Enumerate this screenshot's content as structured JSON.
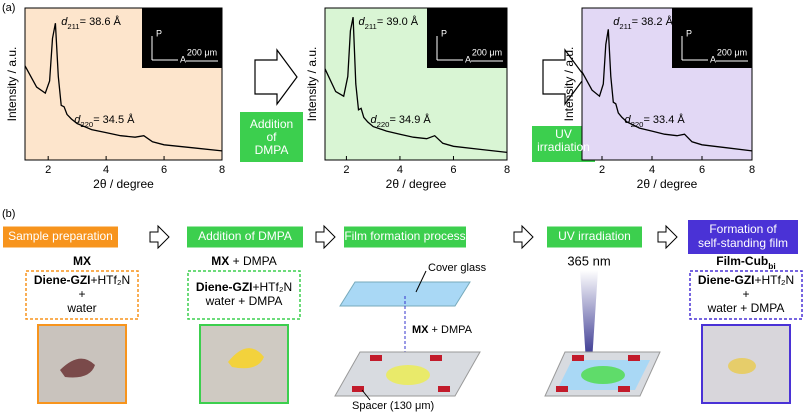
{
  "panel_a_label": "(a)",
  "chart_data": [
    {
      "type": "line",
      "xlabel": "2θ / degree",
      "ylabel": "Intensity / a.u.",
      "xlim": [
        1.2,
        8
      ],
      "xticks": [
        2,
        4,
        6,
        8
      ],
      "ylim": [
        0,
        100
      ],
      "background": "#fde5cc",
      "x": [
        1.2,
        1.6,
        1.9,
        2.05,
        2.15,
        2.25,
        2.35,
        2.45,
        2.55,
        2.65,
        2.8,
        3.0,
        3.5,
        4,
        4.5,
        5,
        5.3,
        5.6,
        6,
        7,
        8
      ],
      "series": [
        {
          "color": "#000000",
          "values": [
            62,
            48,
            44,
            52,
            80,
            90,
            55,
            36,
            35,
            30,
            27,
            24,
            20,
            18,
            16,
            15,
            16,
            12,
            10,
            8,
            6
          ]
        }
      ],
      "annotations": [
        [
          {
            "text": "d",
            "italic": true
          },
          {
            "text": "211",
            "sub": true
          },
          {
            "text": "= 38.6 Å"
          }
        ],
        [
          {
            "text": "d",
            "italic": true
          },
          {
            "text": "220",
            "sub": true
          },
          {
            "text": "= 34.5 Å"
          }
        ]
      ],
      "inset": {
        "vertical": "P",
        "horizontal": "A",
        "scale": "200 μm"
      }
    },
    {
      "type": "line",
      "xlabel": "2θ / degree",
      "ylabel": "Intensity / a.u.",
      "xlim": [
        1.2,
        8
      ],
      "xticks": [
        2,
        4,
        6,
        8
      ],
      "ylim": [
        0,
        100
      ],
      "background": "#d9f5d4",
      "x": [
        1.2,
        1.6,
        1.9,
        2.05,
        2.15,
        2.25,
        2.35,
        2.45,
        2.55,
        2.65,
        2.8,
        3.0,
        3.5,
        4,
        4.5,
        5,
        5.3,
        5.6,
        6,
        7,
        8
      ],
      "series": [
        {
          "color": "#000000",
          "values": [
            60,
            45,
            42,
            55,
            85,
            94,
            50,
            33,
            34,
            28,
            25,
            22,
            19,
            17,
            15,
            14,
            16,
            11,
            9,
            7,
            5
          ]
        }
      ],
      "annotations": [
        [
          {
            "text": "d",
            "italic": true
          },
          {
            "text": "211",
            "sub": true
          },
          {
            "text": "= 39.0 Å"
          }
        ],
        [
          {
            "text": "d",
            "italic": true
          },
          {
            "text": "220",
            "sub": true
          },
          {
            "text": "= 34.9 Å"
          }
        ]
      ],
      "inset": {
        "vertical": "P",
        "horizontal": "A",
        "scale": "200 μm"
      }
    },
    {
      "type": "line",
      "xlabel": "2θ / degree",
      "ylabel": "Intensity / a.u.",
      "xlim": [
        1.2,
        8
      ],
      "xticks": [
        2,
        4,
        6,
        8
      ],
      "ylim": [
        0,
        100
      ],
      "background": "#e2d8f5",
      "x": [
        1.2,
        1.6,
        1.9,
        2.05,
        2.15,
        2.25,
        2.35,
        2.45,
        2.55,
        2.65,
        2.8,
        3.0,
        3.5,
        4,
        4.5,
        5,
        5.3,
        5.6,
        6,
        7,
        8
      ],
      "series": [
        {
          "color": "#000000",
          "values": [
            58,
            46,
            42,
            50,
            76,
            86,
            55,
            38,
            37,
            31,
            28,
            25,
            21,
            19,
            17,
            16,
            17,
            12,
            10,
            8,
            6
          ]
        }
      ],
      "annotations": [
        [
          {
            "text": "d",
            "italic": true
          },
          {
            "text": "211",
            "sub": true
          },
          {
            "text": "= 38.2 Å"
          }
        ],
        [
          {
            "text": "d",
            "italic": true
          },
          {
            "text": "220",
            "sub": true
          },
          {
            "text": "= 33.4 Å"
          }
        ]
      ],
      "inset": {
        "vertical": "P",
        "horizontal": "A",
        "scale": "200 μm"
      }
    }
  ],
  "arrows_a": [
    [
      "Addition",
      "of",
      "DMPA"
    ],
    [
      "UV",
      "irradiation"
    ]
  ],
  "panel_b_label": "(b)",
  "steps": [
    [
      "Sample preparation"
    ],
    [
      "Addition of DMPA"
    ],
    [
      "Film formation process"
    ],
    [
      "UV irradiation"
    ],
    [
      "Formation of",
      "self-standing film"
    ]
  ],
  "compositions": [
    {
      "title": [
        {
          "text": "MX",
          "bold": true
        }
      ],
      "lines": [
        [
          {
            "text": "Diene-GZI",
            "bold": true
          },
          {
            "text": "+HTf₂N"
          }
        ],
        [
          {
            "text": "+"
          }
        ],
        [
          {
            "text": "water"
          }
        ]
      ]
    },
    {
      "title": [
        {
          "text": "MX",
          "bold": true
        },
        {
          "text": " + DMPA"
        }
      ],
      "lines": [
        [
          {
            "text": "Diene-GZI",
            "bold": true
          },
          {
            "text": "+HTf₂N"
          }
        ],
        [
          {
            "text": "water + DMPA"
          }
        ]
      ]
    },
    {
      "title": [
        {
          "text": "Film-Cub",
          "bold": true
        },
        {
          "text": "bi",
          "bold": true,
          "sub": true
        }
      ],
      "lines": [
        [
          {
            "text": "Diene-GZI",
            "bold": true
          },
          {
            "text": "+HTf₂N"
          }
        ],
        [
          {
            "text": "+"
          }
        ],
        [
          {
            "text": "water + DMPA"
          }
        ]
      ]
    }
  ],
  "film": {
    "cover": "Cover glass",
    "mixture": [
      {
        "text": "MX",
        "bold": true
      },
      {
        "text": " + DMPA"
      }
    ],
    "spacer": "Spacer (130 μm)"
  },
  "uv": "365 nm"
}
